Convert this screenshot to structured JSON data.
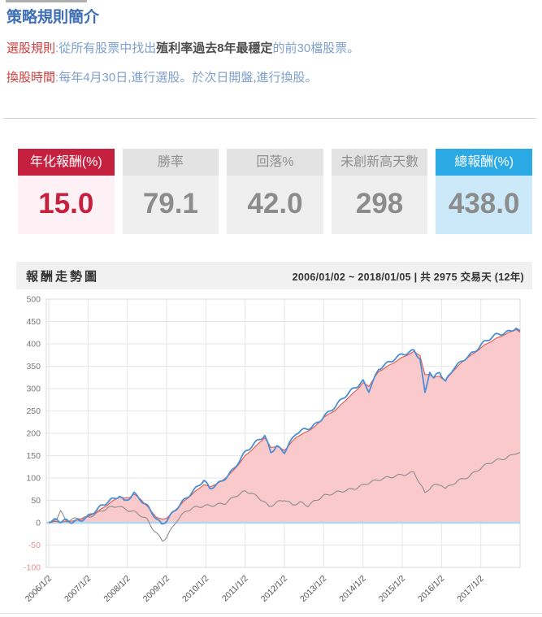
{
  "intro": {
    "title": "策略規則簡介",
    "rules": [
      {
        "label": "選股規則",
        "colon": ":",
        "parts": [
          {
            "text": "從所有股票中找出",
            "style": "normal"
          },
          {
            "text": "殖利率過去8年最穩定",
            "style": "bold"
          },
          {
            "text": "的前30檔股票。",
            "style": "normal"
          }
        ]
      },
      {
        "label": "換股時間",
        "colon": ":",
        "parts": [
          {
            "text": "每年4月30日,進行選股。於次日開盤,進行換股。",
            "style": "normal"
          }
        ]
      }
    ]
  },
  "stats": [
    {
      "label": "年化報酬(%)",
      "value": "15.0",
      "theme": "red"
    },
    {
      "label": "勝率",
      "value": "79.1",
      "theme": "gray"
    },
    {
      "label": "回落%",
      "value": "42.0",
      "theme": "gray"
    },
    {
      "label": "未創新高天數",
      "value": "298",
      "theme": "gray"
    },
    {
      "label": "總報酬(%)",
      "value": "438.0",
      "theme": "blue"
    }
  ],
  "chart": {
    "title": "報酬走勢圖",
    "range_text": "2006/01/02 ~ 2018/01/05 | 共 2975 交易天 (12年)"
  },
  "chart_data": {
    "type": "line",
    "title": "報酬走勢圖",
    "grid": true,
    "legend": "none",
    "x_axis": {
      "labels": [
        "2006/1/2",
        "2007/1/2",
        "2008/1/2",
        "2009/1/2",
        "2010/1/2",
        "2011/1/2",
        "2012/1/2",
        "2013/1/2",
        "2014/1/2",
        "2015/1/2",
        "2016/1/2",
        "2017/1/2"
      ],
      "rotation": -45,
      "range": [
        2006,
        2018
      ]
    },
    "y_axis": {
      "min": -100,
      "max": 500,
      "step": 50,
      "negative_tick_color": "#e89090",
      "tick_color": "#777777"
    },
    "baseline": {
      "value": 0,
      "color": "#b3d7ee"
    },
    "series": [
      {
        "name": "gray-benchmark-line",
        "color": "#8c8c8c",
        "x": [
          2006.0,
          2006.2,
          2006.3,
          2006.45,
          2006.75,
          2007.0,
          2007.25,
          2007.5,
          2007.75,
          2008.0,
          2008.25,
          2008.5,
          2008.7,
          2008.9,
          2009.0,
          2009.25,
          2009.5,
          2009.75,
          2010.0,
          2010.25,
          2010.5,
          2010.75,
          2011.0,
          2011.15,
          2011.45,
          2011.6,
          2011.8,
          2012.0,
          2012.2,
          2012.4,
          2012.6,
          2012.8,
          2013.0,
          2013.3,
          2013.6,
          2013.85,
          2014.1,
          2014.4,
          2014.7,
          2015.0,
          2015.3,
          2015.58,
          2015.75,
          2016.0,
          2016.1,
          2016.4,
          2016.7,
          2017.0,
          2017.3,
          2017.6,
          2017.85,
          2018.0
        ],
        "values": [
          0,
          8,
          26,
          6,
          12,
          10,
          20,
          33,
          40,
          30,
          20,
          5,
          -20,
          -38,
          -30,
          5,
          25,
          33,
          38,
          42,
          45,
          58,
          68,
          66,
          52,
          38,
          45,
          50,
          38,
          45,
          40,
          52,
          60,
          65,
          72,
          80,
          90,
          95,
          100,
          108,
          115,
          66,
          80,
          84,
          75,
          95,
          105,
          121,
          135,
          145,
          155,
          157
        ]
      },
      {
        "name": "red-area-line",
        "color": "#e05a4e",
        "fill": "#f9c9cc",
        "x": [
          2006.0,
          2006.15,
          2006.3,
          2006.45,
          2006.6,
          2006.8,
          2007.0,
          2007.2,
          2007.4,
          2007.6,
          2007.8,
          2007.92,
          2008.05,
          2008.17,
          2008.35,
          2008.55,
          2008.75,
          2008.87,
          2009.0,
          2009.2,
          2009.45,
          2009.7,
          2009.95,
          2010.1,
          2010.4,
          2010.7,
          2011.0,
          2011.3,
          2011.5,
          2011.65,
          2011.8,
          2012.0,
          2012.3,
          2012.6,
          2012.8,
          2013.0,
          2013.3,
          2013.6,
          2013.85,
          2014.0,
          2014.15,
          2014.4,
          2014.7,
          2015.0,
          2015.3,
          2015.45,
          2015.58,
          2015.7,
          2015.8,
          2015.95,
          2016.1,
          2016.3,
          2016.6,
          2016.85,
          2017.1,
          2017.4,
          2017.7,
          2017.9,
          2018.0
        ],
        "values": [
          0,
          3,
          2,
          3,
          4,
          7,
          13,
          23,
          35,
          47,
          58,
          54,
          56,
          63,
          52,
          33,
          12,
          8,
          10,
          26,
          48,
          68,
          86,
          80,
          92,
          116,
          150,
          174,
          190,
          168,
          170,
          162,
          192,
          205,
          216,
          235,
          252,
          278,
          298,
          312,
          305,
          338,
          354,
          370,
          382,
          374,
          330,
          332,
          325,
          328,
          318,
          340,
          365,
          380,
          398,
          413,
          424,
          432,
          426
        ]
      },
      {
        "name": "blue-strategy-line",
        "color": "#4a8fd3",
        "x": [
          2006.0,
          2006.15,
          2006.3,
          2006.45,
          2006.6,
          2006.8,
          2007.0,
          2007.2,
          2007.4,
          2007.6,
          2007.8,
          2007.92,
          2008.05,
          2008.17,
          2008.35,
          2008.55,
          2008.75,
          2008.87,
          2009.0,
          2009.2,
          2009.45,
          2009.7,
          2009.95,
          2010.1,
          2010.4,
          2010.7,
          2011.0,
          2011.3,
          2011.5,
          2011.65,
          2011.8,
          2012.0,
          2012.3,
          2012.6,
          2012.8,
          2013.0,
          2013.3,
          2013.6,
          2013.85,
          2014.0,
          2014.15,
          2014.4,
          2014.7,
          2015.0,
          2015.3,
          2015.45,
          2015.58,
          2015.7,
          2015.8,
          2015.95,
          2016.1,
          2016.3,
          2016.6,
          2016.85,
          2017.1,
          2017.4,
          2017.7,
          2017.9,
          2018.0
        ],
        "values": [
          0,
          5,
          1,
          4,
          3,
          8,
          15,
          26,
          38,
          50,
          62,
          50,
          58,
          67,
          50,
          30,
          5,
          -4,
          6,
          30,
          52,
          70,
          93,
          76,
          95,
          120,
          155,
          180,
          197,
          160,
          173,
          158,
          198,
          210,
          222,
          240,
          260,
          285,
          305,
          318,
          298,
          345,
          358,
          375,
          387,
          370,
          291,
          340,
          322,
          335,
          312,
          345,
          370,
          385,
          403,
          418,
          428,
          436,
          429
        ]
      }
    ]
  }
}
